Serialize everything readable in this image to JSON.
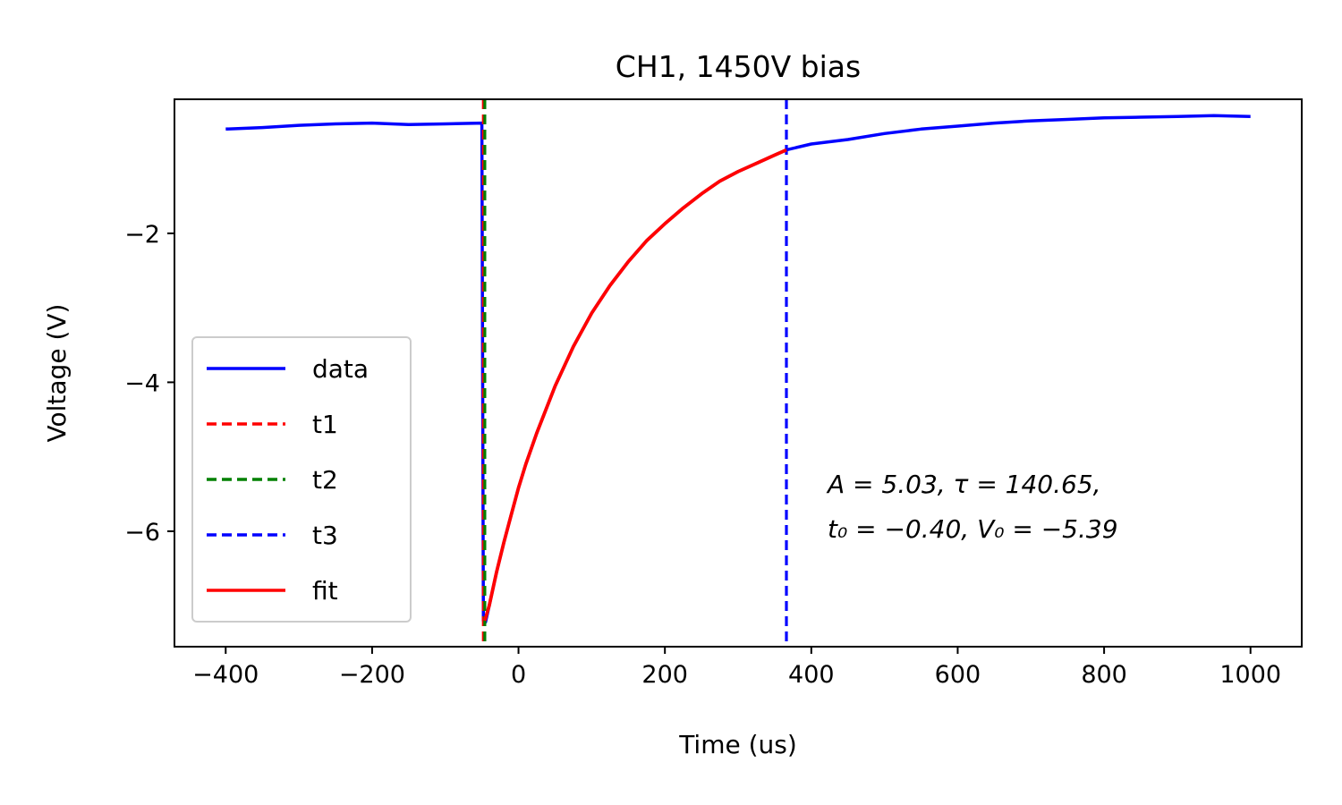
{
  "chart_data": {
    "type": "line",
    "title": "CH1, 1450V bias",
    "xlabel": "Time (us)",
    "ylabel": "Voltage (V)",
    "xlim": [
      -470,
      1070
    ],
    "ylim": [
      -7.55,
      -0.2
    ],
    "xticks": [
      -400,
      -200,
      0,
      200,
      400,
      600,
      800,
      1000
    ],
    "xtick_labels": [
      "−400",
      "−200",
      "0",
      "200",
      "400",
      "600",
      "800",
      "1000"
    ],
    "yticks": [
      -2,
      -4,
      -6
    ],
    "ytick_labels": [
      "−2",
      "−4",
      "−6"
    ],
    "grid": false,
    "legend_position": "lower-left",
    "legend": [
      {
        "name": "data",
        "style": "solid",
        "color": "#0000ff"
      },
      {
        "name": "t1",
        "style": "dashed",
        "color": "#ff0000"
      },
      {
        "name": "t2",
        "style": "dashed",
        "color": "#008000"
      },
      {
        "name": "t3",
        "style": "dashed",
        "color": "#0000ff"
      },
      {
        "name": "fit",
        "style": "solid",
        "color": "#ff0000"
      }
    ],
    "vlines": [
      {
        "name": "t1",
        "x": -48,
        "color": "#ff0000"
      },
      {
        "name": "t2",
        "x": -46,
        "color": "#008000"
      },
      {
        "name": "t3",
        "x": 366,
        "color": "#0000ff"
      }
    ],
    "series": [
      {
        "name": "data",
        "color": "#0000ff",
        "x": [
          -400,
          -350,
          -300,
          -250,
          -200,
          -150,
          -100,
          -50,
          -48,
          -45,
          -40,
          -30,
          -20,
          -10,
          0,
          10,
          25,
          50,
          75,
          100,
          125,
          150,
          175,
          200,
          225,
          250,
          275,
          300,
          325,
          350,
          366,
          400,
          450,
          500,
          550,
          600,
          650,
          700,
          750,
          800,
          850,
          900,
          950,
          1000
        ],
        "y": [
          -0.6,
          -0.58,
          -0.55,
          -0.53,
          -0.52,
          -0.54,
          -0.53,
          -0.52,
          -7.2,
          -7.22,
          -7.0,
          -6.55,
          -6.15,
          -5.78,
          -5.42,
          -5.1,
          -4.68,
          -4.05,
          -3.52,
          -3.07,
          -2.7,
          -2.38,
          -2.1,
          -1.87,
          -1.66,
          -1.47,
          -1.3,
          -1.17,
          -1.06,
          -0.95,
          -0.88,
          -0.8,
          -0.74,
          -0.66,
          -0.6,
          -0.56,
          -0.52,
          -0.49,
          -0.47,
          -0.45,
          -0.44,
          -0.43,
          -0.42,
          -0.43
        ]
      },
      {
        "name": "fit",
        "color": "#ff0000",
        "x": [
          -46,
          -40,
          -30,
          -20,
          -10,
          0,
          10,
          25,
          50,
          75,
          100,
          125,
          150,
          175,
          200,
          225,
          250,
          275,
          300,
          325,
          350,
          366
        ],
        "y": [
          -7.2,
          -7.0,
          -6.55,
          -6.15,
          -5.78,
          -5.42,
          -5.1,
          -4.68,
          -4.05,
          -3.52,
          -3.07,
          -2.7,
          -2.38,
          -2.1,
          -1.87,
          -1.66,
          -1.47,
          -1.3,
          -1.17,
          -1.06,
          -0.95,
          -0.88
        ]
      }
    ],
    "annotation": {
      "line1": "A = 5.03, τ = 140.65,",
      "line2": "t₀ = −0.40, V₀ = −5.39"
    }
  }
}
